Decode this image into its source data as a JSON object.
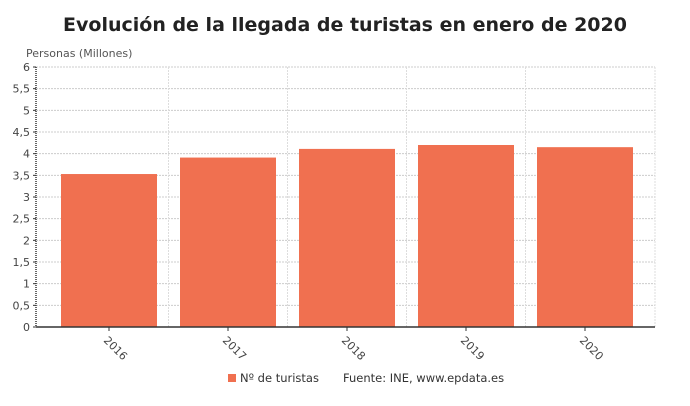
{
  "chart_data": {
    "type": "bar",
    "title": "Evolución de la llegada de turistas en enero de 2020",
    "ylabel": "Personas (Millones)",
    "xlabel": "",
    "categories": [
      "2016",
      "2017",
      "2018",
      "2019",
      "2020"
    ],
    "series": [
      {
        "name": "Nº de turistas",
        "values": [
          3.53,
          3.91,
          4.11,
          4.2,
          4.15
        ],
        "color": "#f07050"
      }
    ],
    "ylim": [
      0,
      6
    ],
    "yticks": [
      "0",
      "0,5",
      "1",
      "1,5",
      "2",
      "2,5",
      "3",
      "3,5",
      "4",
      "4,5",
      "5",
      "5,5",
      "6"
    ],
    "grid": true,
    "legend_position": "bottom"
  },
  "source": "Fuente: INE, www.epdata.es"
}
